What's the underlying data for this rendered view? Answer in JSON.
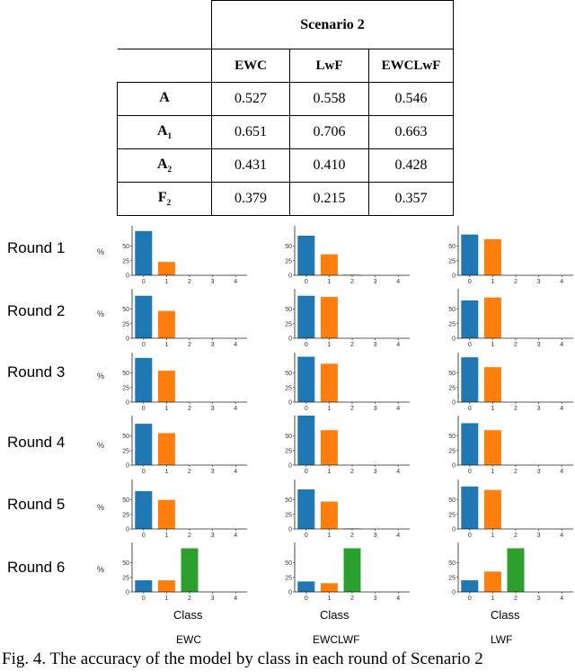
{
  "table": {
    "scenario": "Scenario 2",
    "columns": [
      "EWC",
      "LwF",
      "EWCLwF"
    ],
    "rows": [
      {
        "label": "A",
        "sub": "",
        "values": [
          "0.527",
          "0.558",
          "0.546"
        ]
      },
      {
        "label": "A",
        "sub": "1",
        "values": [
          "0.651",
          "0.706",
          "0.663"
        ]
      },
      {
        "label": "A",
        "sub": "2",
        "values": [
          "0.431",
          "0.410",
          "0.428"
        ]
      },
      {
        "label": "F",
        "sub": "2",
        "values": [
          "0.379",
          "0.215",
          "0.357"
        ]
      }
    ]
  },
  "figure": {
    "round_labels": [
      "Round 1",
      "Round 2",
      "Round 3",
      "Round 4",
      "Round 5",
      "Round 6"
    ],
    "y_unit": "%",
    "x_label": "Class",
    "method_labels": [
      "EWC",
      "EWCLWF",
      "LWF"
    ],
    "colors": {
      "class0": "#1f77b4",
      "class1": "#ff7f0e",
      "class2": "#2ca02c"
    },
    "caption": "Fig.  4. The accuracy of the model by class in each round of Scenario 2"
  },
  "chart_data": {
    "type": "bar",
    "categories": [
      "0",
      "1",
      "2",
      "3",
      "4"
    ],
    "xlabel": "Class",
    "ylabel": "%",
    "ylim": [
      0,
      85
    ],
    "yticks": [
      0,
      25,
      50
    ],
    "panels": [
      {
        "round": "Round 1",
        "method": "EWC",
        "values": [
          76,
          23,
          0,
          0,
          0
        ]
      },
      {
        "round": "Round 1",
        "method": "EWCLWF",
        "values": [
          68,
          36,
          1,
          0,
          0
        ]
      },
      {
        "round": "Round 1",
        "method": "LWF",
        "values": [
          70,
          62,
          0,
          0,
          0
        ]
      },
      {
        "round": "Round 2",
        "method": "EWC",
        "values": [
          73,
          47,
          0,
          0,
          0
        ]
      },
      {
        "round": "Round 2",
        "method": "EWCLWF",
        "values": [
          73,
          71,
          0,
          0,
          0
        ]
      },
      {
        "round": "Round 2",
        "method": "LWF",
        "values": [
          65,
          70,
          0,
          0,
          0
        ]
      },
      {
        "round": "Round 3",
        "method": "EWC",
        "values": [
          76,
          54,
          0,
          0,
          0
        ]
      },
      {
        "round": "Round 3",
        "method": "EWCLWF",
        "values": [
          78,
          66,
          0,
          0,
          0
        ]
      },
      {
        "round": "Round 3",
        "method": "LWF",
        "values": [
          77,
          60,
          0,
          0,
          0
        ]
      },
      {
        "round": "Round 4",
        "method": "EWC",
        "values": [
          71,
          55,
          0,
          0,
          0
        ]
      },
      {
        "round": "Round 4",
        "method": "EWCLWF",
        "values": [
          85,
          60,
          0,
          0,
          0
        ]
      },
      {
        "round": "Round 4",
        "method": "LWF",
        "values": [
          72,
          60,
          0,
          0,
          0
        ]
      },
      {
        "round": "Round 5",
        "method": "EWC",
        "values": [
          65,
          50,
          0,
          0,
          0
        ]
      },
      {
        "round": "Round 5",
        "method": "EWCLWF",
        "values": [
          68,
          47,
          1,
          0,
          0
        ]
      },
      {
        "round": "Round 5",
        "method": "LWF",
        "values": [
          73,
          67,
          0,
          0,
          0
        ]
      },
      {
        "round": "Round 6",
        "method": "EWC",
        "values": [
          20,
          20,
          75,
          0,
          0
        ]
      },
      {
        "round": "Round 6",
        "method": "EWCLWF",
        "values": [
          18,
          15,
          75,
          0,
          0
        ]
      },
      {
        "round": "Round 6",
        "method": "LWF",
        "values": [
          20,
          35,
          75,
          0,
          0
        ]
      }
    ]
  }
}
